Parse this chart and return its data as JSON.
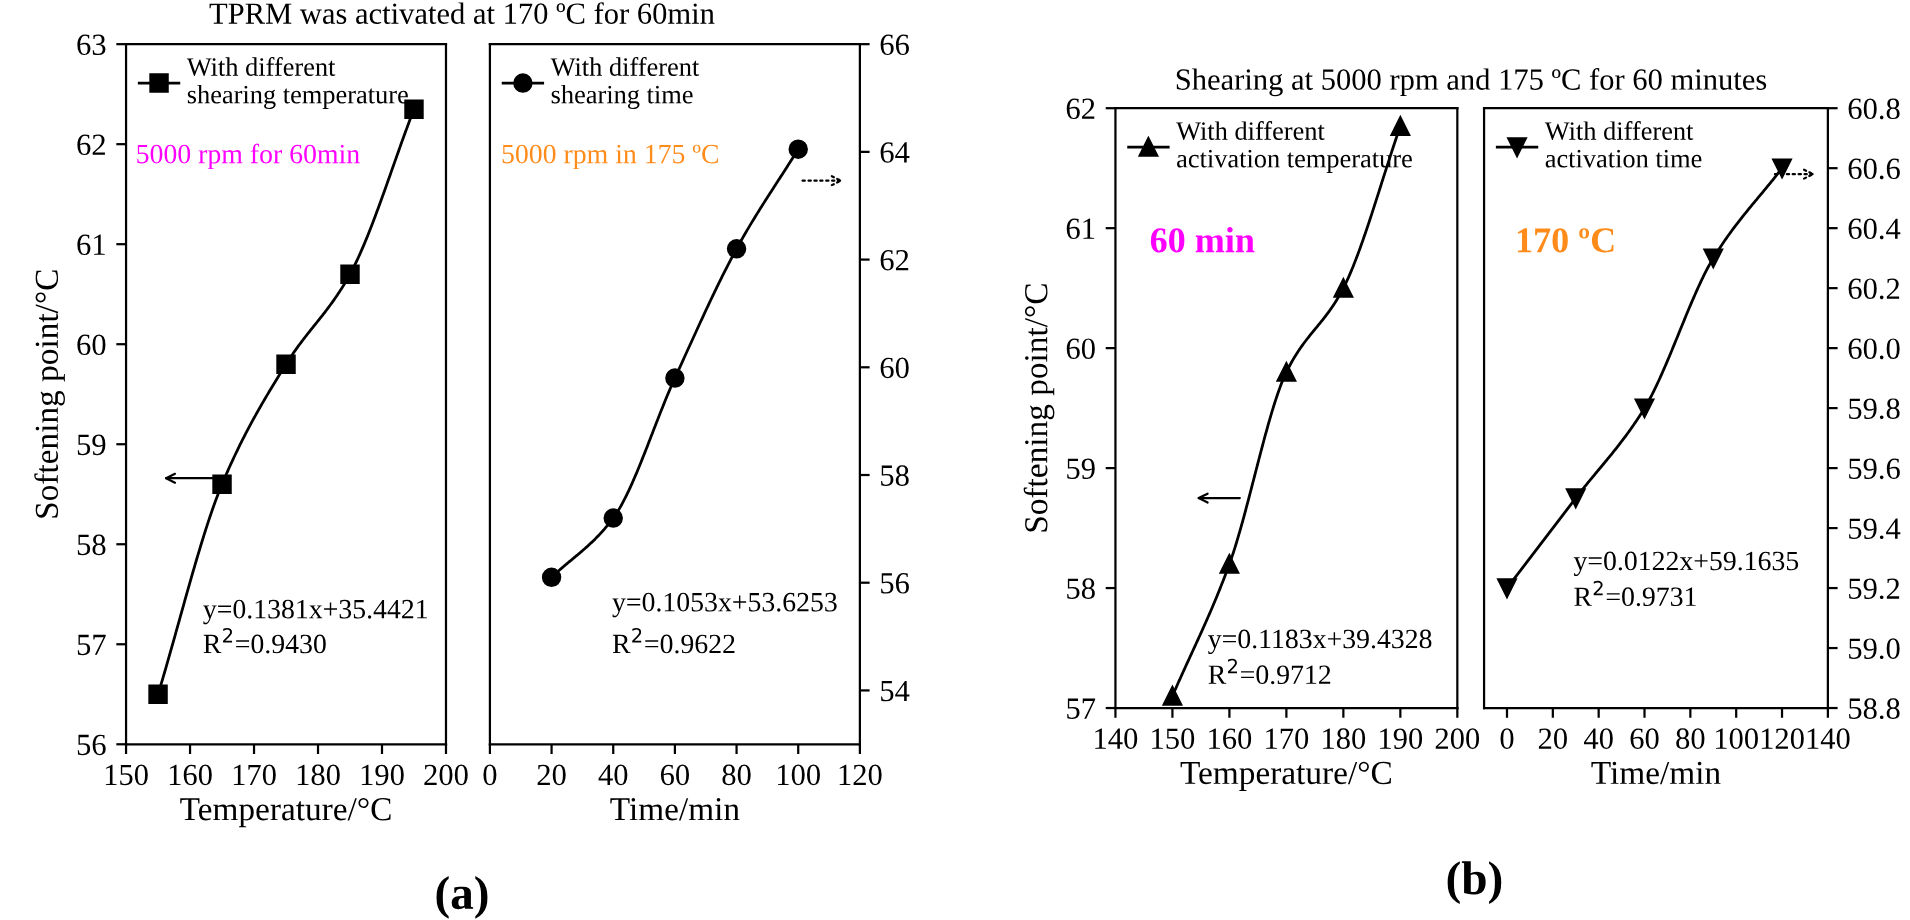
{
  "chart_data": [
    {
      "type": "line",
      "title": "TPRM was activated at 170 ºC for 60min",
      "xlabel": "Temperature/°C",
      "ylabel": "Softening point/°C",
      "x": [
        155,
        165,
        175,
        185,
        195
      ],
      "series": [
        {
          "name": "With different\nshearing temperature",
          "color": "#000000",
          "values": [
            56.5,
            58.6,
            59.8,
            60.7,
            62.35
          ]
        }
      ],
      "xlim": [
        150,
        200
      ],
      "xticks": [
        150,
        160,
        170,
        180,
        190,
        200
      ],
      "ylim": [
        56,
        63
      ],
      "yticks": [
        56,
        57,
        58,
        59,
        60,
        61,
        62,
        63
      ],
      "marker": "square",
      "legend": "top left",
      "grid": false,
      "annotations": [
        "5000 rpm for 60min",
        "y=0.1381x+35.4421",
        "R$^{2}$=0.9430",
        "(a)"
      ]
    },
    {
      "type": "line",
      "xlabel": "Time/min",
      "x": [
        20,
        40,
        60,
        80,
        100
      ],
      "series": [
        {
          "name": "With different\nshearing time",
          "color": "#000000",
          "values": [
            56.1,
            57.2,
            59.8,
            62.2,
            64.05
          ]
        }
      ],
      "xlim": [
        0,
        120
      ],
      "xticks": [
        0,
        20,
        40,
        60,
        80,
        100,
        120
      ],
      "ylim": [
        53,
        66
      ],
      "yticks": [
        54,
        56,
        58,
        60,
        62,
        64,
        66
      ],
      "marker": "circle",
      "legend": "top left",
      "grid": false,
      "annotations": [
        "5000 rpm in 175 ºC",
        "y=0.1053x+53.6253",
        "R$^{2}$=0.9622"
      ]
    },
    {
      "type": "line",
      "title": "Shearing at 5000 rpm and 175 ºC for 60 minutes",
      "xlabel": "Temperature/°C",
      "ylabel": "Softening point/°C",
      "x": [
        150,
        160,
        170,
        180,
        190
      ],
      "series": [
        {
          "name": "With different\nactivation temperature",
          "color": "#000000",
          "values": [
            57.1,
            58.2,
            59.8,
            60.5,
            61.85
          ]
        }
      ],
      "xlim": [
        140,
        200
      ],
      "xticks": [
        140,
        150,
        160,
        170,
        180,
        190,
        200
      ],
      "ylim": [
        57,
        62
      ],
      "yticks": [
        57,
        58,
        59,
        60,
        61,
        62
      ],
      "marker": "triangle",
      "legend": "top left",
      "grid": false,
      "annotations": [
        "60 min",
        "y=0.1183x+39.4328",
        "R$^{2}$=0.9712",
        "(b)"
      ]
    },
    {
      "type": "line",
      "xlabel": "Time/min",
      "x": [
        0,
        30,
        60,
        90,
        120
      ],
      "series": [
        {
          "name": "With different\nactivation time",
          "color": "#000000",
          "values": [
            59.2,
            59.5,
            59.8,
            60.3,
            60.6
          ]
        }
      ],
      "xlim": [
        -10,
        140
      ],
      "xticks": [
        0,
        20,
        40,
        60,
        80,
        100,
        120,
        140
      ],
      "ylim": [
        58.8,
        60.8
      ],
      "yticks": [
        {
          "value": 58.8,
          "label": "58.8"
        },
        {
          "value": 59.0,
          "label": "59.0"
        },
        {
          "value": 59.2,
          "label": "59.2"
        },
        {
          "value": 59.4,
          "label": "59.4"
        },
        {
          "value": 59.6,
          "label": "59.6"
        },
        {
          "value": 59.8,
          "label": "59.8"
        },
        {
          "value": 60.0,
          "label": "60.0"
        },
        {
          "value": 60.2,
          "label": "60.2"
        },
        {
          "value": 60.4,
          "label": "60.4"
        },
        {
          "value": 60.6,
          "label": "60.6"
        },
        {
          "value": 60.8,
          "label": "60.8"
        }
      ],
      "marker": "triangle-down",
      "legend": "top left",
      "grid": false,
      "annotations": [
        "170 ºC",
        "y=0.0122x+59.1635",
        "R$^{2}$=0.9731"
      ]
    }
  ]
}
